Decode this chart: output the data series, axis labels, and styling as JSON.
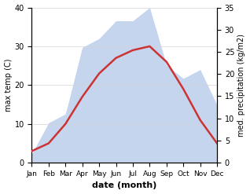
{
  "months": [
    "Jan",
    "Feb",
    "Mar",
    "Apr",
    "May",
    "Jun",
    "Jul",
    "Aug",
    "Sep",
    "Oct",
    "Nov",
    "Dec"
  ],
  "temperature": [
    3,
    5,
    10,
    17,
    23,
    27,
    29,
    30,
    26,
    19,
    11,
    5
  ],
  "precipitation": [
    2,
    9,
    11,
    26,
    28,
    32,
    32,
    35,
    22,
    19,
    21,
    13
  ],
  "temp_color": "#cc3333",
  "precip_fill_color": "#c5d5ee",
  "temp_ylim": [
    0,
    40
  ],
  "precip_ylim": [
    0,
    35
  ],
  "temp_yticks": [
    0,
    10,
    20,
    30,
    40
  ],
  "precip_yticks": [
    0,
    5,
    10,
    15,
    20,
    25,
    30,
    35
  ],
  "xlabel": "date (month)",
  "ylabel_left": "max temp (C)",
  "ylabel_right": "med. precipitation (kg/m2)",
  "fig_width": 3.18,
  "fig_height": 2.47,
  "dpi": 100
}
